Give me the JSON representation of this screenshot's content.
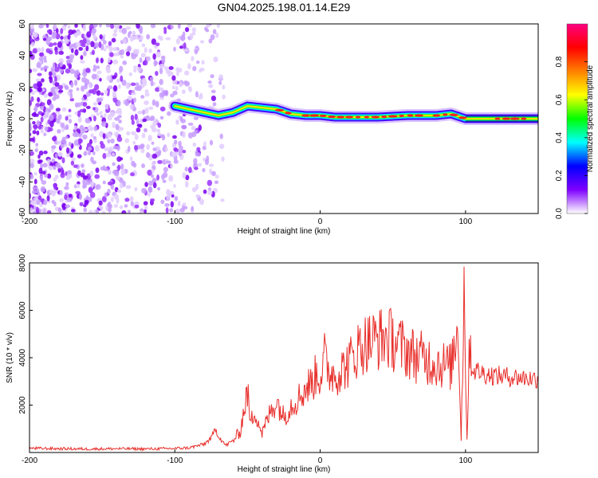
{
  "figure_title": "GN04.2025.198.01.14.E29",
  "chart_data": [
    {
      "type": "heatmap",
      "title": "GN04.2025.198.01.14.E29",
      "xlabel": "Height of straight line (km)",
      "ylabel": "Frequency (Hz)",
      "xlim": [
        -200,
        150
      ],
      "ylim": [
        -60,
        60
      ],
      "x_ticks": [
        -200,
        -100,
        0,
        100
      ],
      "x_tick_labels": [
        "-200",
        "-100",
        "0",
        "100"
      ],
      "y_ticks": [
        -60,
        -40,
        -20,
        0,
        20,
        40,
        60
      ],
      "y_tick_labels": [
        "-60",
        "-40",
        "-20",
        "0",
        "20",
        "40",
        "60"
      ],
      "colorbar": {
        "label": "Normalized spectral amplitude",
        "range": [
          0,
          1
        ],
        "ticks": [
          0.0,
          0.2,
          0.4,
          0.6,
          0.8
        ],
        "tick_labels": [
          "0.0",
          "0.2",
          "0.4",
          "0.6",
          "0.8"
        ],
        "colors": [
          "#ffffff",
          "#7f00ff",
          "#0000ff",
          "#00ffff",
          "#00ff00",
          "#ffff00",
          "#ff8000",
          "#ff0000",
          "#ff0080"
        ]
      },
      "ridge": {
        "x": [
          -100,
          -90,
          -80,
          -70,
          -60,
          -50,
          -40,
          -30,
          -20,
          -10,
          0,
          10,
          20,
          40,
          60,
          80,
          90,
          100,
          120,
          150
        ],
        "freq": [
          8,
          6,
          4,
          2,
          4,
          8,
          7,
          6,
          3,
          2,
          2,
          1,
          1,
          1,
          2,
          2,
          3,
          0,
          0,
          0
        ]
      },
      "noise_x_range": [
        -200,
        -65
      ]
    },
    {
      "type": "line",
      "xlabel": "Height of straight line (km)",
      "ylabel": "SNR (10 * v/v)",
      "xlim": [
        -200,
        150
      ],
      "ylim": [
        0,
        8000
      ],
      "x_ticks": [
        -200,
        -100,
        0,
        100
      ],
      "x_tick_labels": [
        "-200",
        "-100",
        "0",
        "100"
      ],
      "y_ticks": [
        2000,
        4000,
        6000,
        8000
      ],
      "y_tick_labels": [
        "2000",
        "4000",
        "6000",
        "8000"
      ],
      "color": "#e8302c",
      "series": [
        {
          "x": [
            -200,
            -180,
            -160,
            -140,
            -120,
            -100,
            -90,
            -80,
            -75,
            -72,
            -70,
            -65,
            -60,
            -55,
            -50,
            -48,
            -45,
            -40,
            -35,
            -30,
            -25,
            -20,
            -15,
            -10,
            -5,
            -2,
            0,
            3,
            5,
            10,
            15,
            20,
            25,
            30,
            35,
            40,
            45,
            50,
            55,
            60,
            65,
            70,
            75,
            80,
            85,
            90,
            95,
            97,
            99,
            101,
            103,
            105,
            110,
            115,
            120,
            130,
            140,
            150
          ],
          "y": [
            180,
            160,
            150,
            160,
            150,
            170,
            200,
            350,
            600,
            1000,
            700,
            300,
            500,
            900,
            2600,
            1200,
            1800,
            800,
            1600,
            2200,
            1500,
            2000,
            2300,
            2700,
            3000,
            3400,
            3200,
            4000,
            3500,
            3300,
            3500,
            3800,
            4300,
            4600,
            4700,
            4800,
            4850,
            4750,
            4500,
            4300,
            4100,
            4000,
            3900,
            3800,
            3700,
            3600,
            5500,
            500,
            7000,
            600,
            4800,
            3500,
            3400,
            3300,
            3250,
            3200,
            3150,
            3100
          ]
        }
      ]
    }
  ]
}
